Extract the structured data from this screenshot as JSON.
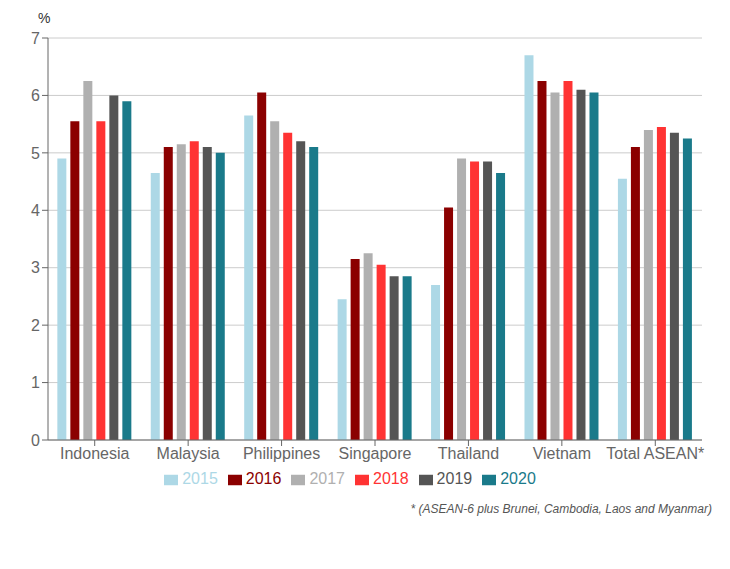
{
  "chart_data": {
    "type": "bar",
    "ylabel": "%",
    "annotations": [
      "* (ASEAN-6 plus Brunei, Cambodia, Laos and Myanmar)"
    ],
    "categories": [
      "Indonesia",
      "Malaysia",
      "Philippines",
      "Singapore",
      "Thailand",
      "Vietnam",
      "Total ASEAN*"
    ],
    "series": [
      {
        "name": "2015",
        "color": "#ADD8E6",
        "values": [
          4.9,
          4.65,
          5.65,
          2.45,
          2.7,
          6.7,
          4.55
        ]
      },
      {
        "name": "2016",
        "color": "#8B0000",
        "values": [
          5.55,
          5.1,
          6.05,
          3.15,
          4.05,
          6.25,
          5.1
        ]
      },
      {
        "name": "2017",
        "color": "#B0B0B0",
        "values": [
          6.25,
          5.15,
          5.55,
          3.25,
          4.9,
          6.05,
          5.4
        ]
      },
      {
        "name": "2018",
        "color": "#FF3333",
        "values": [
          5.55,
          5.2,
          5.35,
          3.05,
          4.85,
          6.25,
          5.45
        ]
      },
      {
        "name": "2019",
        "color": "#555555",
        "values": [
          6.0,
          5.1,
          5.2,
          2.85,
          4.85,
          6.1,
          5.35
        ]
      },
      {
        "name": "2020",
        "color": "#1A7A8A",
        "values": [
          5.9,
          5.0,
          5.1,
          2.85,
          4.65,
          6.05,
          5.25
        ]
      }
    ],
    "ylim": [
      0,
      7
    ],
    "yticks": [
      0,
      1,
      2,
      3,
      4,
      5,
      6,
      7
    ],
    "grid": true,
    "legend": "bottom"
  }
}
